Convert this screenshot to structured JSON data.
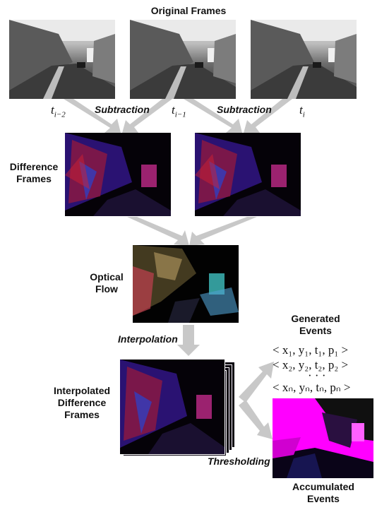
{
  "title": "Original Frames",
  "time_labels": {
    "t1": "t",
    "t1_sub": "i−2",
    "t2": "t",
    "t2_sub": "i−1",
    "t3": "t",
    "t3_sub": "i"
  },
  "operations": {
    "subtraction_1": "Subtraction",
    "subtraction_2": "Subtraction",
    "interpolation": "Interpolation",
    "thresholding": "Thresholding"
  },
  "labels": {
    "difference_frames_1": "Difference",
    "difference_frames_2": "Frames",
    "optical_flow_1": "Optical",
    "optical_flow_2": "Flow",
    "interp_1": "Interpolated",
    "interp_2": "Difference",
    "interp_3": "Frames",
    "generated_1": "Generated",
    "generated_2": "Events",
    "accumulated_1": "Accumulated",
    "accumulated_2": "Events"
  },
  "events": {
    "line1": "< x₁, y₁, t₁, p₁ >",
    "line2": "< x₂, y₂, t₂, p₂ >",
    "dots": "· · ·",
    "line3": "< xₙ, yₙ, tₙ, pₙ >"
  },
  "colors": {
    "arrow": "#c8c8c8",
    "accent_magenta": "#ff00ff",
    "diff_red": "#c0202a",
    "diff_blue": "#2a38c8"
  }
}
